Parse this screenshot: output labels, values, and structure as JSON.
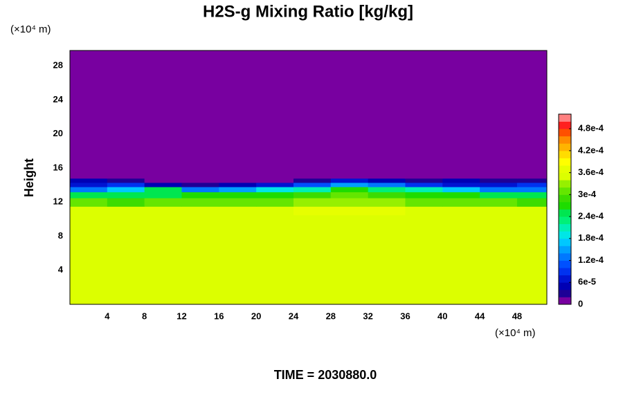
{
  "chart_data": {
    "type": "heatmap",
    "title": "H2S-g Mixing Ratio [kg/kg]",
    "y_label": "Height",
    "y_unit": "(×10⁴ m)",
    "x_unit": "(×10⁴ m)",
    "footer": "TIME = 2030880.0",
    "x": [
      0,
      4,
      8,
      12,
      16,
      20,
      24,
      28,
      32,
      36,
      40,
      44,
      48,
      51.2
    ],
    "y": [
      0,
      10.5,
      11.5,
      12.5,
      13.2,
      13.8,
      14.3,
      14.8,
      29.8
    ],
    "z": [
      [
        0.00035,
        0.00035,
        0.00035,
        0.00035,
        0.00035,
        0.00035,
        0.00035,
        0.00035,
        0.00035,
        0.00035,
        0.00035,
        0.00035,
        0.00035
      ],
      [
        0.00034,
        0.00034,
        0.00034,
        0.00034,
        0.00035,
        0.00035,
        0.00036,
        0.00036,
        0.00036,
        0.00035,
        0.00034,
        0.00034,
        0.00034
      ],
      [
        0.0003,
        0.00028,
        0.0003,
        0.0003,
        0.0003,
        0.00031,
        0.00032,
        0.00033,
        0.00032,
        0.00031,
        0.0003,
        0.0003,
        0.00029
      ],
      [
        0.00024,
        0.00025,
        0.00024,
        0.00026,
        0.00027,
        0.00027,
        0.00028,
        0.0003,
        0.00028,
        0.00027,
        0.00026,
        0.00024,
        0.00024
      ],
      [
        0.00012,
        0.00016,
        0.00024,
        0.00012,
        0.00014,
        0.00018,
        0.0002,
        0.00026,
        0.00022,
        0.0002,
        0.00016,
        0.00012,
        0.00012
      ],
      [
        6e-05,
        8e-05,
        4e-05,
        2e-05,
        4e-05,
        6e-05,
        0.0001,
        0.00014,
        0.00012,
        8e-05,
        6e-05,
        6e-05,
        8e-05
      ],
      [
        4e-05,
        2e-05,
        0,
        0,
        0,
        0,
        2e-05,
        6e-05,
        4e-05,
        2e-05,
        4e-05,
        2e-05,
        2e-05
      ],
      [
        0,
        0,
        0,
        0,
        0,
        0,
        0,
        0,
        0,
        0,
        0,
        0,
        0
      ]
    ],
    "xlim": [
      0,
      51.2
    ],
    "ylim": [
      0,
      29.8
    ],
    "xticks": [
      4,
      8,
      12,
      16,
      20,
      24,
      28,
      32,
      36,
      40,
      44,
      48
    ],
    "yticks": [
      4,
      8,
      12,
      16,
      20,
      24,
      28
    ],
    "clim": [
      0,
      0.00052
    ],
    "colors": [
      "#7800a0",
      "#1e0096",
      "#0000b4",
      "#0014d2",
      "#0032f0",
      "#0050ff",
      "#0078ff",
      "#00a0ff",
      "#00c8ff",
      "#00e6e6",
      "#00f0b4",
      "#00f078",
      "#00e650",
      "#1edc00",
      "#3cdc00",
      "#64e600",
      "#96f000",
      "#dcff00",
      "#e6ff00",
      "#ffff00",
      "#ffdc00",
      "#ffb400",
      "#ff8c00",
      "#ff5000",
      "#ff2020",
      "#ff8080"
    ],
    "cticks": [
      0,
      {
        "value": 6e-05,
        "label": "6e-5"
      },
      {
        "value": 0.00012,
        "label": "1.2e-4"
      },
      {
        "value": 0.00018,
        "label": "1.8e-4"
      },
      {
        "value": 0.00024,
        "label": "2.4e-4"
      },
      {
        "value": 0.0003,
        "label": "3e-4"
      },
      {
        "value": 0.00036,
        "label": "3.6e-4"
      },
      {
        "value": 0.00042,
        "label": "4.2e-4"
      },
      {
        "value": 0.00048,
        "label": "4.8e-4"
      }
    ]
  }
}
